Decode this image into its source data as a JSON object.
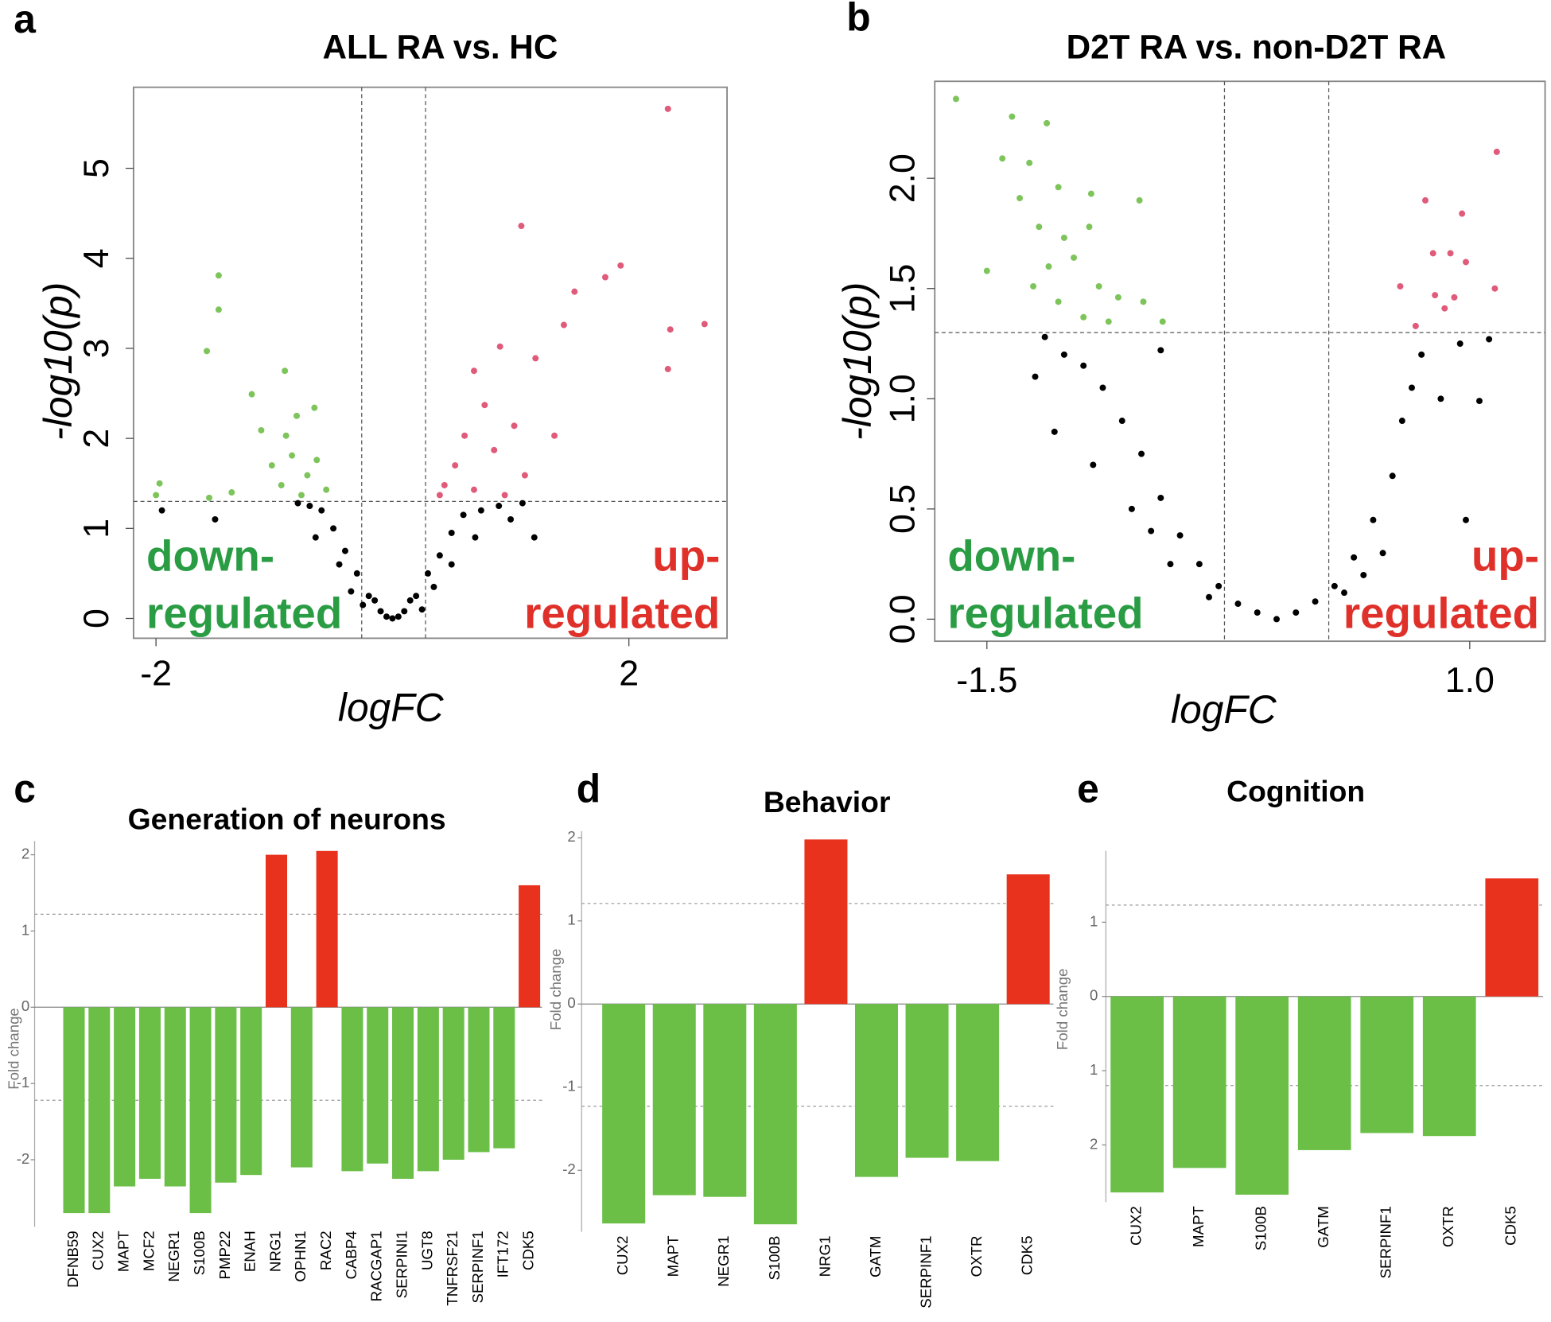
{
  "chart_data": [
    {
      "type": "scatter",
      "panel_label": "a",
      "title": "ALL RA vs. HC",
      "xlabel": "logFC",
      "ylabel": "-log10(p)",
      "xlim": [
        -2.19,
        2.83
      ],
      "ylim": [
        -0.22,
        5.9
      ],
      "xticks": [
        -2,
        2
      ],
      "yticks": [
        0,
        1,
        2,
        3,
        4,
        5
      ],
      "vlines": [
        -0.26,
        0.28
      ],
      "hlines": [
        1.3
      ],
      "annotations": [
        {
          "lines": [
            "down-",
            "regulated"
          ],
          "color": "#2a9d44"
        },
        {
          "lines": [
            "up-",
            "regulated"
          ],
          "color": "#e0302a"
        }
      ],
      "series": [
        {
          "color": "#000000",
          "x": [
            -0.05,
            0.05,
            0,
            -0.1,
            0.1,
            -0.2,
            0.2,
            -0.3,
            0.3,
            -0.4,
            0.4,
            -0.5,
            0.5,
            -0.6,
            0.6,
            -0.7,
            0.75,
            -0.45,
            0.5,
            -0.8,
            0.9,
            1.0,
            -1.5,
            -1.95,
            1.2,
            -0.35,
            0.35,
            -0.25,
            0.25,
            0.15,
            -0.15,
            0.7,
            -0.65,
            1.1
          ],
          "y": [
            0.02,
            0.02,
            0,
            0.08,
            0.08,
            0.25,
            0.25,
            0.5,
            0.5,
            0.75,
            0.7,
            1.0,
            0.95,
            1.2,
            1.15,
            1.25,
            1.2,
            0.6,
            0.6,
            1.28,
            1.25,
            1.1,
            1.1,
            1.2,
            0.9,
            0.3,
            0.35,
            0.15,
            0.1,
            0.2,
            0.2,
            0.9,
            0.9,
            1.28
          ]
        },
        {
          "color": "#7dc45a",
          "x": [
            -2.0,
            -1.97,
            -1.57,
            -1.47,
            -1.47,
            -1.55,
            -1.36,
            -1.19,
            -0.91,
            -1.11,
            -0.9,
            -0.81,
            -0.66,
            -1.02,
            -0.72,
            -0.56,
            -0.85,
            -0.94,
            -0.64,
            -0.77
          ],
          "y": [
            1.37,
            1.5,
            2.97,
            3.43,
            3.81,
            1.34,
            1.4,
            2.49,
            2.75,
            2.09,
            2.03,
            2.25,
            2.34,
            1.7,
            1.59,
            1.43,
            1.81,
            1.48,
            1.76,
            1.37
          ]
        },
        {
          "color": "#e05a7a",
          "x": [
            2.33,
            1.09,
            1.93,
            1.8,
            2.64,
            2.35,
            2.33,
            1.54,
            1.45,
            0.91,
            1.21,
            0.69,
            0.78,
            1.37,
            1.03,
            0.61,
            0.86,
            0.53,
            0.44,
            1.12,
            0.69,
            0.4,
            0.95
          ],
          "y": [
            5.66,
            4.36,
            3.92,
            3.79,
            3.27,
            3.21,
            2.77,
            3.63,
            3.26,
            3.02,
            2.89,
            2.75,
            2.37,
            2.03,
            2.14,
            2.03,
            1.87,
            1.7,
            1.48,
            1.59,
            1.43,
            1.37,
            1.37
          ]
        }
      ]
    },
    {
      "type": "scatter",
      "panel_label": "b",
      "title": "D2T RA vs. non-D2T RA",
      "xlabel": "logFC",
      "ylabel": "-log10(p)",
      "xlim": [
        -1.77,
        1.39
      ],
      "ylim": [
        -0.1,
        2.44
      ],
      "xticks": [
        -1.5,
        {
          "value": 1.0,
          "label": "1.0"
        }
      ],
      "yticks": [
        {
          "value": 0,
          "label": "0.0"
        },
        0.5,
        {
          "value": 1,
          "label": "1.0"
        },
        1.5,
        {
          "value": 2,
          "label": "2.0"
        }
      ],
      "vlines": [
        -0.27,
        0.27
      ],
      "hlines": [
        1.3
      ],
      "annotations": [
        {
          "lines": [
            "down-",
            "regulated"
          ],
          "color": "#2a9d44"
        },
        {
          "lines": [
            "up-",
            "regulated"
          ],
          "color": "#e0302a"
        }
      ],
      "series": [
        {
          "color": "#000000",
          "x": [
            0,
            -0.1,
            0.1,
            -0.2,
            0.2,
            -0.3,
            0.3,
            -0.4,
            0.4,
            -0.5,
            0.5,
            -0.6,
            0.6,
            -0.7,
            0.65,
            -0.8,
            0.7,
            -0.9,
            0.75,
            -1.0,
            -1.1,
            -1.2,
            -0.55,
            0.55,
            -0.75,
            -0.95,
            -1.15,
            0.85,
            0.95,
            1.1,
            1.05,
            0.98,
            -0.65,
            0.45,
            -0.35,
            0.35,
            -1.25,
            -0.6
          ],
          "y": [
            0,
            0.03,
            0.03,
            0.07,
            0.08,
            0.15,
            0.15,
            0.25,
            0.28,
            0.38,
            0.45,
            0.55,
            0.65,
            0.75,
            0.9,
            0.9,
            1.05,
            1.05,
            1.2,
            1.15,
            1.2,
            1.28,
            0.25,
            0.3,
            0.5,
            0.7,
            0.85,
            1.0,
            1.25,
            1.27,
            0.99,
            0.45,
            0.4,
            0.2,
            0.1,
            0.12,
            1.1,
            1.22
          ]
        },
        {
          "color": "#7dc45a",
          "x": [
            -1.66,
            -1.37,
            -1.19,
            -1.42,
            -1.28,
            -1.13,
            -1.5,
            -0.96,
            -0.71,
            -1.33,
            -1.23,
            -1.1,
            -0.97,
            -1.18,
            -1.05,
            -1.26,
            -0.92,
            -0.82,
            -1.13,
            -1.0,
            -0.69,
            -0.59,
            -0.87
          ],
          "y": [
            2.36,
            2.28,
            2.25,
            2.09,
            2.07,
            1.96,
            1.58,
            1.93,
            1.9,
            1.91,
            1.78,
            1.73,
            1.78,
            1.6,
            1.64,
            1.51,
            1.51,
            1.46,
            1.44,
            1.37,
            1.44,
            1.35,
            1.35
          ]
        },
        {
          "color": "#e05a7a",
          "x": [
            1.14,
            0.77,
            0.96,
            1.13,
            0.81,
            0.9,
            0.98,
            0.64,
            0.92,
            0.82,
            0.87,
            0.72
          ],
          "y": [
            2.12,
            1.9,
            1.84,
            1.5,
            1.66,
            1.66,
            1.62,
            1.51,
            1.46,
            1.47,
            1.41,
            1.33
          ]
        }
      ]
    },
    {
      "type": "bar",
      "panel_label": "c",
      "title": "Generation of neurons",
      "ylabel": "Fold change",
      "categories": [
        "DFNB59",
        "CUX2",
        "MAPT",
        "MCF2",
        "NEGR1",
        "S100B",
        "PMP22",
        "ENAH",
        "NRG1",
        "OPHN1",
        "RAC2",
        "CABP4",
        "RACGAP1",
        "SERPINI1",
        "UGT8",
        "TNFRSF21",
        "SERPINF1",
        "IFT172",
        "CDK5"
      ],
      "values": [
        -2.7,
        -2.7,
        -2.35,
        -2.25,
        -2.35,
        -2.7,
        -2.3,
        -2.2,
        2.0,
        -2.1,
        2.05,
        -2.15,
        -2.05,
        -2.25,
        -2.15,
        -2.0,
        -1.9,
        -1.85,
        1.6
      ],
      "ylim": [
        -2.88,
        2.18
      ],
      "yticks": [
        2,
        1,
        0,
        -1,
        -2
      ],
      "hlines": [
        1.22,
        -1.22
      ],
      "color_up": "#e8321e",
      "color_down": "#6bbf47"
    },
    {
      "type": "bar",
      "panel_label": "d",
      "title": "Behavior",
      "ylabel": "Fold change",
      "categories": [
        "CUX2",
        "MAPT",
        "NEGR1",
        "S100B",
        "NRG1",
        "GATM",
        "SERPINF1",
        "OXTR",
        "CDK5"
      ],
      "values": [
        -2.64,
        -2.3,
        -2.32,
        -2.65,
        1.98,
        -2.08,
        -1.85,
        -1.89,
        1.56
      ],
      "ylim": [
        -2.74,
        2.08
      ],
      "yticks": [
        2,
        1,
        0,
        -1,
        -2
      ],
      "hlines": [
        1.21,
        -1.23
      ],
      "color_up": "#e8321e",
      "color_down": "#6bbf47"
    },
    {
      "type": "bar",
      "panel_label": "e",
      "title": "Cognition",
      "ylabel": "Fold change",
      "categories": [
        "CUX2",
        "MAPT",
        "S100B",
        "GATM",
        "SERPINF1",
        "OXTR",
        "CDK5"
      ],
      "values": [
        -2.64,
        -2.31,
        -2.67,
        -2.07,
        -1.84,
        -1.88,
        1.59
      ],
      "ylim": [
        -2.77,
        1.96
      ],
      "yticks": [
        1,
        0,
        {
          "value": -1,
          "label": "1"
        },
        {
          "value": -2,
          "label": "2"
        }
      ],
      "hlines": [
        1.23,
        -1.2
      ],
      "color_up": "#e8321e",
      "color_down": "#6bbf47"
    }
  ]
}
